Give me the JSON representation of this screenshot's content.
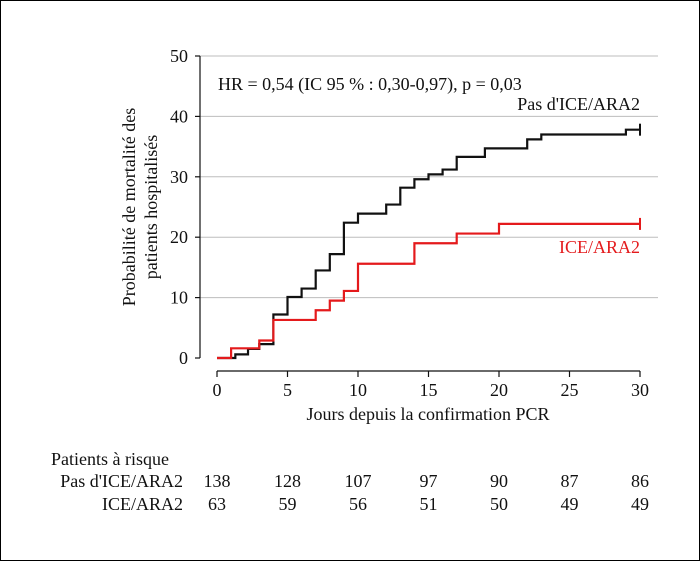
{
  "chart_data": {
    "type": "line",
    "subtype": "kaplan-meier-step",
    "annotation": "HR = 0,54 (IC 95 % : 0,30-0,97), p = 0,03",
    "xlabel": "Jours depuis la confirmation PCR",
    "ylabel_lines": [
      "Probabilité de mortalité des",
      "patients hospitalisés"
    ],
    "xlim": [
      0,
      30
    ],
    "ylim": [
      0,
      50
    ],
    "xticks": [
      0,
      5,
      10,
      15,
      20,
      25,
      30
    ],
    "yticks": [
      0,
      10,
      20,
      30,
      40,
      50
    ],
    "grid": "horizontal",
    "series": [
      {
        "name": "Pas d'ICE/ARA2",
        "color": "#111111",
        "steps": [
          [
            0,
            0
          ],
          [
            1.3,
            0.6
          ],
          [
            2.2,
            1.5
          ],
          [
            3,
            2.3
          ],
          [
            4,
            7.2
          ],
          [
            5,
            10.1
          ],
          [
            6,
            11.5
          ],
          [
            7,
            14.5
          ],
          [
            8,
            17.2
          ],
          [
            9,
            22.4
          ],
          [
            10,
            23.9
          ],
          [
            12,
            25.4
          ],
          [
            13,
            28.2
          ],
          [
            14,
            29.6
          ],
          [
            15,
            30.4
          ],
          [
            16,
            31.2
          ],
          [
            17,
            33.3
          ],
          [
            19,
            34.7
          ],
          [
            21,
            34.7
          ],
          [
            22,
            36.2
          ],
          [
            23,
            37.0
          ],
          [
            29,
            37.8
          ],
          [
            30,
            37.8
          ]
        ],
        "censor_x": 30
      },
      {
        "name": "ICE/ARA2",
        "color": "#e41a1c",
        "steps": [
          [
            0,
            0
          ],
          [
            1,
            1.6
          ],
          [
            3,
            2.9
          ],
          [
            4,
            6.3
          ],
          [
            7,
            7.9
          ],
          [
            8,
            9.5
          ],
          [
            9,
            11.1
          ],
          [
            10,
            15.6
          ],
          [
            14,
            19.0
          ],
          [
            17,
            20.6
          ],
          [
            20,
            22.2
          ],
          [
            30,
            22.2
          ]
        ],
        "censor_x": 30
      }
    ],
    "risk_table": {
      "title": "Patients à risque",
      "times": [
        0,
        5,
        10,
        15,
        20,
        25,
        30
      ],
      "rows": [
        {
          "label": "Pas d'ICE/ARA2",
          "values": [
            138,
            128,
            107,
            97,
            90,
            87,
            86
          ]
        },
        {
          "label": "ICE/ARA2",
          "values": [
            63,
            59,
            56,
            51,
            50,
            49,
            49
          ]
        }
      ]
    }
  }
}
